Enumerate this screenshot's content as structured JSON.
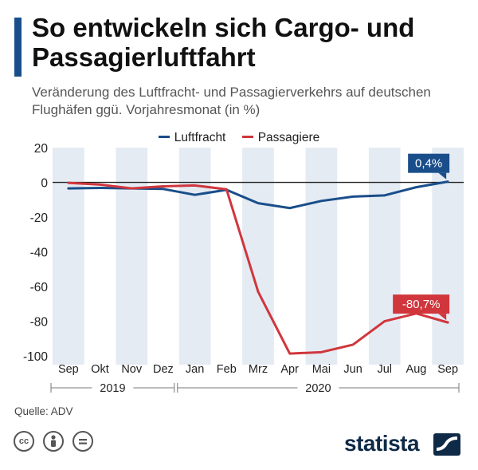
{
  "title": "So entwickeln sich Cargo- und Passagierluftfahrt",
  "subtitle": "Veränderung des Luftfracht- und Passagierverkehrs auf deutschen Flughäfen ggü. Vorjahresmonat (in %)",
  "source": "Quelle: ADV",
  "brand": "statista",
  "colors": {
    "luftfracht": "#1a4e8a",
    "passagiere": "#d0363c",
    "band": "#e4ebf3",
    "accent": "#1a4e8a"
  },
  "chart_data": {
    "type": "line",
    "title": "So entwickeln sich Cargo- und Passagierluftfahrt",
    "xlabel": "",
    "ylabel": "",
    "categories": [
      "Sep",
      "Okt",
      "Nov",
      "Dez",
      "Jan",
      "Feb",
      "Mrz",
      "Apr",
      "Mai",
      "Jun",
      "Jul",
      "Aug",
      "Sep"
    ],
    "year_groups": [
      {
        "label": "2019",
        "start": 0,
        "end": 3
      },
      {
        "label": "2020",
        "start": 4,
        "end": 12
      }
    ],
    "yticks": [
      20,
      0,
      -20,
      -40,
      -60,
      -80,
      -100
    ],
    "ylim": [
      -105,
      20
    ],
    "series": [
      {
        "name": "Luftfracht",
        "values": [
          -3.5,
          -3.2,
          -3.5,
          -3.8,
          -7.2,
          -4.3,
          -12,
          -14.8,
          -10.7,
          -8.2,
          -7.5,
          -2.8,
          0.4
        ]
      },
      {
        "name": "Passagiere",
        "values": [
          -0.3,
          -1.3,
          -3.5,
          -2.3,
          -1.8,
          -4,
          -63,
          -98.6,
          -97.8,
          -93.5,
          -80,
          -75.5,
          -80.7
        ]
      }
    ],
    "annotations": [
      {
        "series": "Luftfracht",
        "index": 12,
        "text": "0,4%"
      },
      {
        "series": "Passagiere",
        "index": 12,
        "text": "-80,7%"
      }
    ]
  }
}
